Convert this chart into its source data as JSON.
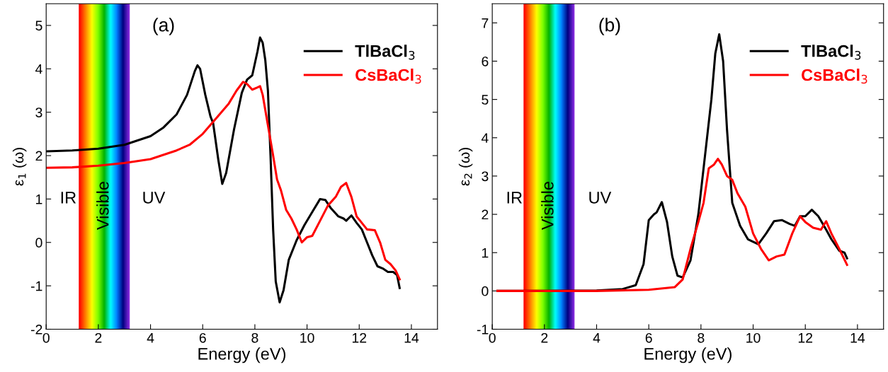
{
  "chart_data": [
    {
      "type": "line",
      "title": "(a)",
      "xlabel": "Energy (eV)",
      "ylabel": "ε$_{1}$ (ω)",
      "xlim": [
        0,
        15
      ],
      "xticks": [
        0,
        2,
        4,
        6,
        8,
        10,
        12,
        14
      ],
      "ylim": [
        -2,
        5.5
      ],
      "yticks": [
        -2,
        -1,
        0,
        1,
        2,
        3,
        4,
        5
      ],
      "bands": [
        {
          "axis": "x",
          "from": 1.25,
          "to": 3.2,
          "label": "Visible"
        }
      ],
      "annotations": [
        "IR",
        "UV"
      ],
      "legend": "top right",
      "grid": false,
      "series": [
        {
          "name": "TlBaCl$_{3}$",
          "color": "#000000",
          "x": [
            0,
            1,
            2,
            3,
            4,
            4.5,
            5,
            5.4,
            5.7,
            5.8,
            5.9,
            6.1,
            6.3,
            6.4,
            6.6,
            6.75,
            6.9,
            7.2,
            7.5,
            7.7,
            7.9,
            8.1,
            8.2,
            8.3,
            8.4,
            8.5,
            8.6,
            8.7,
            8.8,
            8.95,
            9.1,
            9.3,
            9.6,
            9.9,
            10.2,
            10.5,
            10.7,
            10.9,
            11.2,
            11.4,
            11.5,
            11.7,
            11.9,
            12.1,
            12.3,
            12.5,
            12.7,
            12.9,
            13.1,
            13.3,
            13.45,
            13.55
          ],
          "values": [
            2.1,
            2.12,
            2.16,
            2.25,
            2.45,
            2.65,
            2.95,
            3.4,
            3.95,
            4.08,
            4.0,
            3.4,
            2.9,
            2.75,
            1.9,
            1.35,
            1.6,
            2.6,
            3.45,
            3.75,
            3.85,
            4.4,
            4.72,
            4.6,
            4.2,
            3.5,
            2.0,
            0.3,
            -0.9,
            -1.38,
            -1.1,
            -0.4,
            0.05,
            0.4,
            0.7,
            1.0,
            0.98,
            0.8,
            0.6,
            0.55,
            0.5,
            0.62,
            0.45,
            0.3,
            0.0,
            -0.3,
            -0.55,
            -0.6,
            -0.68,
            -0.68,
            -0.75,
            -1.05
          ]
        },
        {
          "name": "CsBaCl$_{3}$",
          "color": "#ff0000",
          "x": [
            0,
            1,
            2,
            3,
            4,
            5,
            5.5,
            6,
            6.5,
            7,
            7.3,
            7.55,
            7.7,
            7.9,
            8.1,
            8.2,
            8.3,
            8.5,
            8.7,
            8.85,
            9.0,
            9.2,
            9.4,
            9.6,
            9.8,
            10.0,
            10.2,
            10.5,
            10.8,
            11.1,
            11.3,
            11.5,
            11.7,
            11.9,
            12.1,
            12.3,
            12.6,
            12.8,
            13.0,
            13.2,
            13.4,
            13.55
          ],
          "values": [
            1.72,
            1.73,
            1.77,
            1.83,
            1.92,
            2.12,
            2.25,
            2.5,
            2.85,
            3.2,
            3.5,
            3.7,
            3.65,
            3.52,
            3.57,
            3.6,
            3.4,
            2.7,
            2.0,
            1.45,
            1.2,
            0.75,
            0.55,
            0.3,
            0.0,
            0.12,
            0.15,
            0.5,
            0.85,
            1.05,
            1.28,
            1.37,
            1.05,
            0.6,
            0.45,
            0.3,
            0.28,
            0.0,
            -0.4,
            -0.5,
            -0.65,
            -0.85
          ]
        }
      ]
    },
    {
      "type": "line",
      "title": "(b)",
      "xlabel": "Energy (eV)",
      "ylabel": "ε$_{2}$ (ω)",
      "xlim": [
        0,
        15
      ],
      "xticks": [
        0,
        2,
        4,
        6,
        8,
        10,
        12,
        14
      ],
      "ylim": [
        -1,
        7.5
      ],
      "yticks": [
        -1,
        0,
        1,
        2,
        3,
        4,
        5,
        6,
        7
      ],
      "bands": [
        {
          "axis": "x",
          "from": 1.2,
          "to": 3.15,
          "label": "Visible"
        }
      ],
      "annotations": [
        "IR",
        "UV"
      ],
      "legend": "top right",
      "grid": false,
      "series": [
        {
          "name": "TlBaCl$_{3}$",
          "color": "#000000",
          "x": [
            0.2,
            2,
            4,
            5,
            5.5,
            5.8,
            6.0,
            6.2,
            6.3,
            6.5,
            6.7,
            6.9,
            7.1,
            7.3,
            7.6,
            7.9,
            8.2,
            8.4,
            8.55,
            8.7,
            8.85,
            9.0,
            9.2,
            9.5,
            9.8,
            10.2,
            10.5,
            10.8,
            11.1,
            11.4,
            11.6,
            11.8,
            12.0,
            12.25,
            12.5,
            12.8,
            13.0,
            13.3,
            13.5,
            13.6
          ],
          "values": [
            0,
            0,
            0.01,
            0.05,
            0.15,
            0.7,
            1.85,
            2.0,
            2.05,
            2.32,
            1.8,
            0.9,
            0.4,
            0.35,
            0.8,
            2.0,
            3.8,
            5.0,
            6.2,
            6.7,
            6.0,
            4.2,
            2.3,
            1.7,
            1.35,
            1.22,
            1.5,
            1.82,
            1.85,
            1.75,
            1.7,
            1.95,
            1.95,
            2.12,
            1.95,
            1.6,
            1.35,
            1.05,
            1.0,
            0.85
          ]
        },
        {
          "name": "CsBaCl$_{3}$",
          "color": "#ff0000",
          "x": [
            0.2,
            2,
            4,
            6,
            7,
            7.3,
            7.6,
            7.9,
            8.1,
            8.3,
            8.5,
            8.65,
            8.8,
            9.0,
            9.2,
            9.4,
            9.7,
            10.0,
            10.3,
            10.6,
            10.9,
            11.2,
            11.5,
            11.8,
            12.0,
            12.3,
            12.6,
            12.8,
            13.0,
            13.3,
            13.6
          ],
          "values": [
            0,
            0,
            0,
            0.03,
            0.1,
            0.3,
            1.1,
            1.8,
            2.3,
            3.2,
            3.3,
            3.45,
            3.3,
            3.0,
            2.9,
            2.55,
            2.2,
            1.5,
            1.1,
            0.8,
            0.9,
            0.95,
            1.5,
            1.95,
            1.8,
            1.65,
            1.6,
            1.82,
            1.5,
            1.1,
            0.68
          ]
        }
      ]
    }
  ]
}
